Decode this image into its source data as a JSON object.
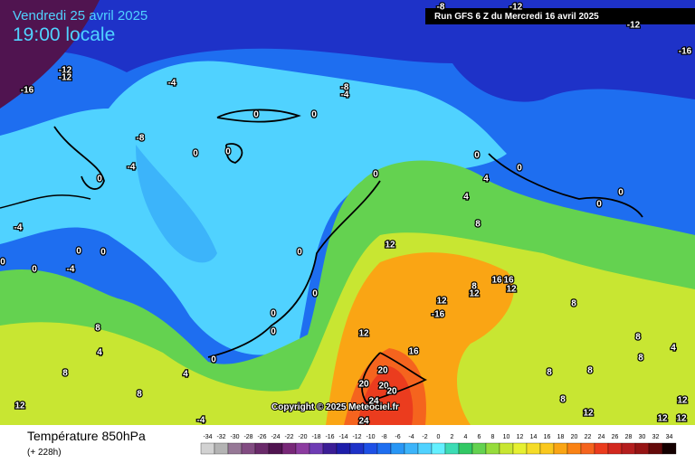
{
  "header": {
    "date": "Vendredi 25 avril 2025",
    "time": "19:00 locale",
    "run": "Run GFS 6 Z du Mercredi 16 avril 2025"
  },
  "copyright": "Copyright © 2025 Meteociel.fr",
  "footer": {
    "title": "Température 850hPa",
    "lead": "(+ 228h)"
  },
  "legend": {
    "labels": [
      -34,
      -32,
      -30,
      -28,
      -26,
      -24,
      -22,
      -20,
      -18,
      -16,
      -14,
      -12,
      -10,
      -8,
      -6,
      -4,
      -2,
      0,
      2,
      4,
      6,
      8,
      10,
      12,
      14,
      16,
      18,
      20,
      22,
      24,
      26,
      28,
      30,
      32,
      34
    ],
    "colors": [
      "#d2d2d2",
      "#b4b4b4",
      "#967896",
      "#824c82",
      "#6a2a6a",
      "#501450",
      "#782878",
      "#8c3ca0",
      "#6e3cb4",
      "#3c1e96",
      "#1e1eaa",
      "#1e32c8",
      "#1e50e6",
      "#1e6ef0",
      "#2896f5",
      "#3cb4fa",
      "#50d2ff",
      "#64f0ff",
      "#3cdcb4",
      "#32c864",
      "#64d250",
      "#96dc3c",
      "#c8e632",
      "#e6f032",
      "#f5dc28",
      "#fac81e",
      "#faa514",
      "#fa8214",
      "#f5641e",
      "#eb3c1e",
      "#d2281e",
      "#b41e1e",
      "#961414",
      "#640a0a",
      "#140000"
    ]
  },
  "map_labels": [
    "-8",
    "-12",
    "-12",
    "-16",
    "-12",
    "-12",
    "-16",
    "-4",
    "-8",
    "-4",
    "0",
    "0",
    "-8",
    "0",
    "0",
    "-4",
    "0",
    "0",
    "0",
    "4",
    "0",
    "0",
    "0",
    "4",
    "8",
    "-4",
    "0",
    "0",
    "0",
    "12",
    "0",
    "0",
    "-4",
    "0",
    "8",
    "16",
    "16",
    "12",
    "12",
    "12",
    "-16",
    "8",
    "0",
    "0",
    "12",
    "16",
    "8",
    "4",
    "8",
    "4",
    "8",
    "0",
    "20",
    "4",
    "8",
    "8",
    "8",
    "20",
    "20",
    "20",
    "24",
    "8",
    "8",
    "12",
    "12",
    "12",
    "12",
    "12",
    "24",
    "-4"
  ]
}
